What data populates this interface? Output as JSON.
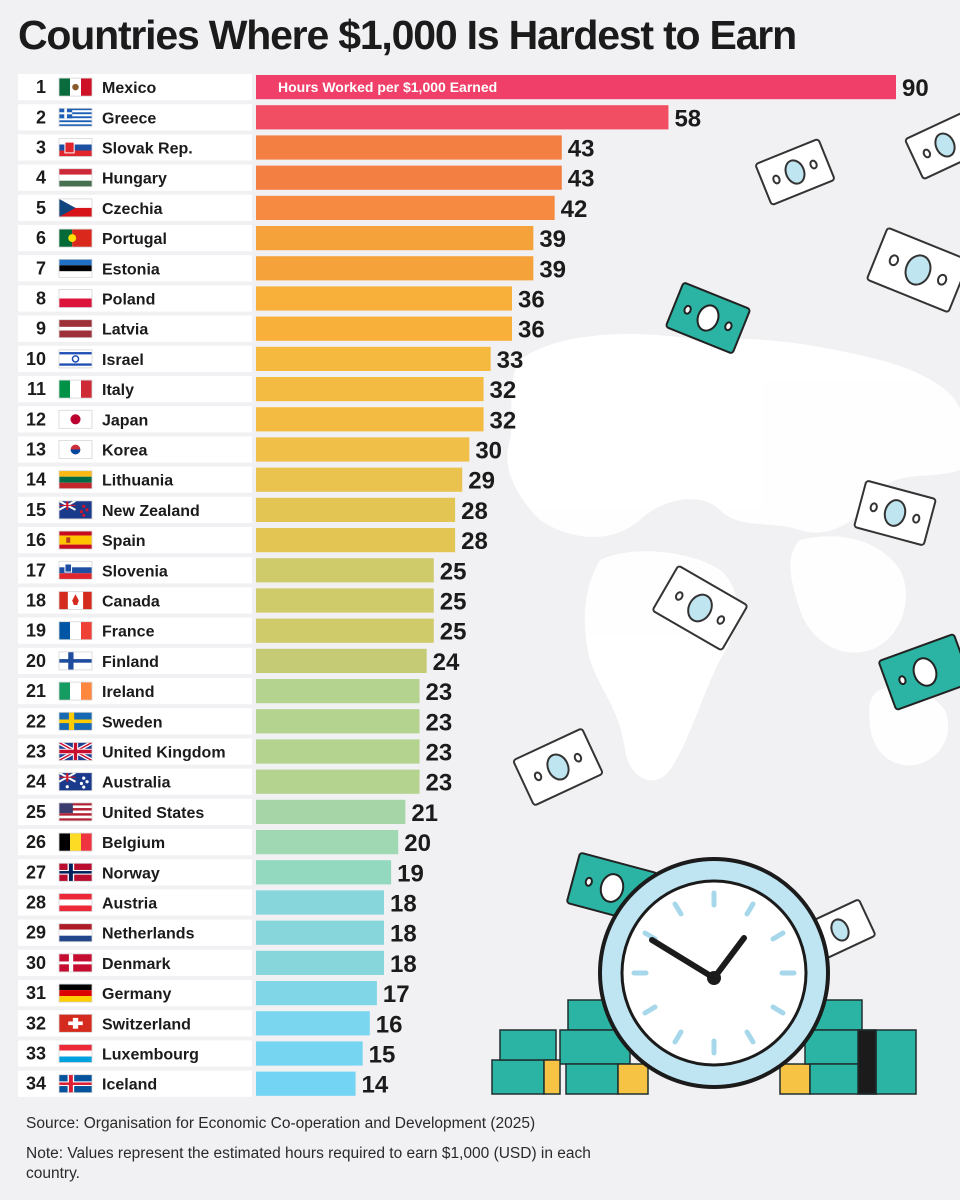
{
  "chart_data": {
    "type": "bar",
    "orientation": "horizontal",
    "title": "Countries Where $1,000 Is Hardest to Earn",
    "series_label": "Hours Worked per $1,000 Earned",
    "ranks": [
      "1",
      "2",
      "3",
      "4",
      "5",
      "6",
      "7",
      "8",
      "9",
      "10",
      "11",
      "12",
      "13",
      "14",
      "15",
      "16",
      "17",
      "18",
      "19",
      "20",
      "21",
      "22",
      "23",
      "24",
      "25",
      "26",
      "27",
      "28",
      "29",
      "30",
      "31",
      "32",
      "33",
      "34"
    ],
    "categories": [
      "Mexico",
      "Greece",
      "Slovak Rep.",
      "Hungary",
      "Czechia",
      "Portugal",
      "Estonia",
      "Poland",
      "Latvia",
      "Israel",
      "Italy",
      "Japan",
      "Korea",
      "Lithuania",
      "New Zealand",
      "Spain",
      "Slovenia",
      "Canada",
      "France",
      "Finland",
      "Ireland",
      "Sweden",
      "United Kingdom",
      "Australia",
      "United States",
      "Belgium",
      "Norway",
      "Austria",
      "Netherlands",
      "Denmark",
      "Germany",
      "Switzerland",
      "Luxembourg",
      "Iceland"
    ],
    "values": [
      90,
      58,
      43,
      43,
      42,
      39,
      39,
      36,
      36,
      33,
      32,
      32,
      30,
      29,
      28,
      28,
      25,
      25,
      25,
      24,
      23,
      23,
      23,
      23,
      21,
      20,
      19,
      18,
      18,
      18,
      17,
      16,
      15,
      14
    ],
    "colors": [
      "#f0406a",
      "#f24e63",
      "#f47f43",
      "#f47f43",
      "#f58a40",
      "#f6a23a",
      "#f6a23a",
      "#f8b03a",
      "#f8b03a",
      "#f6b93f",
      "#f4bb42",
      "#f4bb42",
      "#efbf47",
      "#e9c34d",
      "#e2c552",
      "#e2c552",
      "#cfca6a",
      "#cfca6a",
      "#cfca6a",
      "#c5cb74",
      "#b4d38e",
      "#b4d38e",
      "#b4d38e",
      "#b4d38e",
      "#a6d6a8",
      "#9fd8b3",
      "#92d9c0",
      "#86d6dc",
      "#86d6dc",
      "#86d6dc",
      "#80d5e6",
      "#7ad6ee",
      "#76d5f1",
      "#73d5f3"
    ],
    "flags": [
      "mexico-flag",
      "greece-flag",
      "slovakia-flag",
      "hungary-flag",
      "czechia-flag",
      "portugal-flag",
      "estonia-flag",
      "poland-flag",
      "latvia-flag",
      "israel-flag",
      "italy-flag",
      "japan-flag",
      "korea-flag",
      "lithuania-flag",
      "new-zealand-flag",
      "spain-flag",
      "slovenia-flag",
      "canada-flag",
      "france-flag",
      "finland-flag",
      "ireland-flag",
      "sweden-flag",
      "united-kingdom-flag",
      "australia-flag",
      "united-states-flag",
      "belgium-flag",
      "norway-flag",
      "austria-flag",
      "netherlands-flag",
      "denmark-flag",
      "germany-flag",
      "switzerland-flag",
      "luxembourg-flag",
      "iceland-flag"
    ],
    "xlim": [
      0,
      90
    ]
  },
  "footer": {
    "source": "Source: Organisation for Economic Co-operation and Development (2025)",
    "note": "Note: Values represent the estimated hours required to earn $1,000 (USD) in each country."
  },
  "decorations": [
    "world-map",
    "banknote-icon",
    "alarm-clock-icon",
    "money-stack-icon"
  ]
}
